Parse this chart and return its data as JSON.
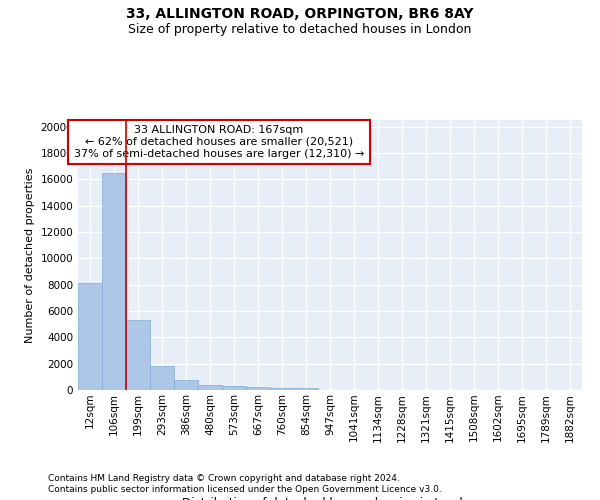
{
  "title1": "33, ALLINGTON ROAD, ORPINGTON, BR6 8AY",
  "title2": "Size of property relative to detached houses in London",
  "xlabel": "Distribution of detached houses by size in London",
  "ylabel": "Number of detached properties",
  "categories": [
    "12sqm",
    "106sqm",
    "199sqm",
    "293sqm",
    "386sqm",
    "480sqm",
    "573sqm",
    "667sqm",
    "760sqm",
    "854sqm",
    "947sqm",
    "1041sqm",
    "1134sqm",
    "1228sqm",
    "1321sqm",
    "1415sqm",
    "1508sqm",
    "1602sqm",
    "1695sqm",
    "1789sqm",
    "1882sqm"
  ],
  "values": [
    8100,
    16500,
    5300,
    1800,
    750,
    350,
    280,
    200,
    180,
    150,
    0,
    0,
    0,
    0,
    0,
    0,
    0,
    0,
    0,
    0,
    0
  ],
  "bar_color": "#aec6e8",
  "bar_edge_color": "#7bafd4",
  "vline_x": 2.0,
  "vline_color": "#cc0000",
  "annotation_text": "33 ALLINGTON ROAD: 167sqm\n← 62% of detached houses are smaller (20,521)\n37% of semi-detached houses are larger (12,310) →",
  "annotation_box_color": "#ffffff",
  "annotation_box_edge": "#cc0000",
  "ylim": [
    0,
    20500
  ],
  "yticks": [
    0,
    2000,
    4000,
    6000,
    8000,
    10000,
    12000,
    14000,
    16000,
    18000,
    20000
  ],
  "footer1": "Contains HM Land Registry data © Crown copyright and database right 2024.",
  "footer2": "Contains public sector information licensed under the Open Government Licence v3.0.",
  "bg_color": "#e8eef8",
  "grid_color": "#ffffff",
  "title1_fontsize": 10,
  "title2_fontsize": 9,
  "xlabel_fontsize": 8.5,
  "ylabel_fontsize": 8,
  "tick_fontsize": 7.5,
  "footer_fontsize": 6.5,
  "annot_fontsize": 8
}
